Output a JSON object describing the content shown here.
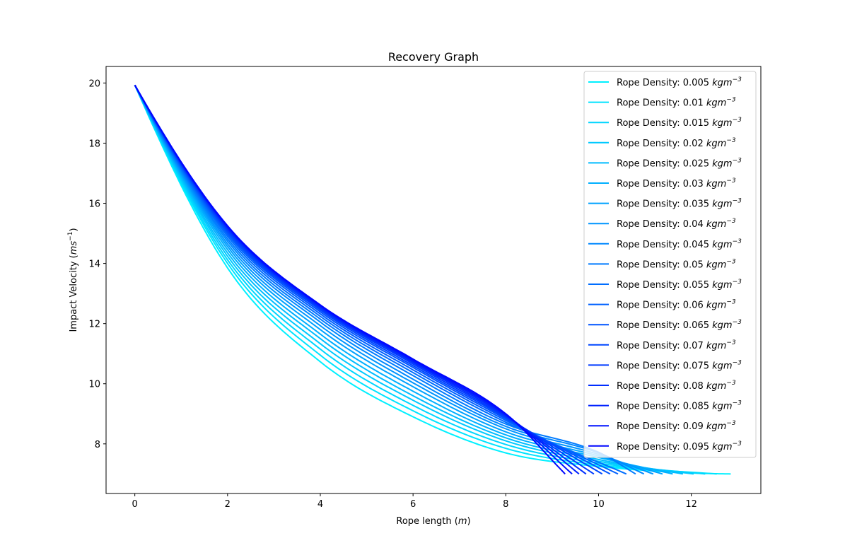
{
  "chart_data": {
    "type": "line",
    "title": "Recovery Graph",
    "xlabel": "Rope length",
    "xlabel_unit": "m",
    "ylabel": "Impact Velocity",
    "ylabel_unit": "ms",
    "ylabel_unit_exp": "−1",
    "xlim": [
      -0.62,
      13.5
    ],
    "ylim": [
      6.35,
      20.55
    ],
    "xticks": [
      0,
      2,
      4,
      6,
      8,
      10,
      12
    ],
    "yticks": [
      8,
      10,
      12,
      14,
      16,
      18,
      20
    ],
    "grid": false,
    "legend_position": "upper right",
    "legend_prefix": "Rope Density: ",
    "legend_unit": "kgm",
    "legend_unit_exp": "−3",
    "start_point": [
      0,
      19.93
    ],
    "end_velocity": 7.0,
    "series": [
      {
        "name": "Rope Density: 0.005 kgm^-3",
        "density": "0.005",
        "color": "#00f0ff",
        "end_x": 12.85,
        "y_at": [
          19.93,
          13.85,
          10.73,
          8.9,
          7.7,
          7.25,
          7.03
        ]
      },
      {
        "name": "Rope Density: 0.01 kgm^-3",
        "density": "0.01",
        "color": "#00e3ff",
        "end_x": 12.55,
        "y_at": [
          19.93,
          14.0,
          10.95,
          9.1,
          7.85,
          7.3,
          7.04
        ]
      },
      {
        "name": "Rope Density: 0.015 kgm^-3",
        "density": "0.015",
        "color": "#00d6ff",
        "end_x": 12.3,
        "y_at": [
          19.93,
          14.12,
          11.15,
          9.28,
          7.98,
          7.36,
          7.05
        ]
      },
      {
        "name": "Rope Density: 0.02 kgm^-3",
        "density": "0.02",
        "color": "#00c9ff",
        "end_x": 12.05,
        "y_at": [
          19.93,
          14.24,
          11.33,
          9.45,
          8.1,
          7.42,
          7.06
        ]
      },
      {
        "name": "Rope Density: 0.025 kgm^-3",
        "density": "0.025",
        "color": "#00bcff",
        "end_x": 11.82,
        "y_at": [
          19.93,
          14.35,
          11.5,
          9.6,
          8.2,
          7.48,
          7.07
        ]
      },
      {
        "name": "Rope Density: 0.03 kgm^-3",
        "density": "0.03",
        "color": "#00afff",
        "end_x": 11.6,
        "y_at": [
          19.93,
          14.46,
          11.65,
          9.75,
          8.3,
          7.55,
          7.08
        ]
      },
      {
        "name": "Rope Density: 0.035 kgm^-3",
        "density": "0.035",
        "color": "#00a2ff",
        "end_x": 11.38,
        "y_at": [
          19.93,
          14.56,
          11.8,
          9.9,
          8.4,
          7.6,
          7.1
        ]
      },
      {
        "name": "Rope Density: 0.04 kgm^-3",
        "density": "0.04",
        "color": "#0095ff",
        "end_x": 11.18,
        "y_at": [
          19.93,
          14.65,
          11.93,
          10.03,
          8.5,
          7.65,
          7.12
        ]
      },
      {
        "name": "Rope Density: 0.045 kgm^-3",
        "density": "0.045",
        "color": "#0088ff",
        "end_x": 10.98,
        "y_at": [
          19.93,
          14.74,
          12.05,
          10.15,
          8.58,
          7.7,
          7.14
        ]
      },
      {
        "name": "Rope Density: 0.05 kgm^-3",
        "density": "0.05",
        "color": "#007bff",
        "end_x": 10.8,
        "y_at": [
          19.93,
          14.82,
          12.15,
          10.27,
          8.66,
          7.72,
          7.16
        ]
      },
      {
        "name": "Rope Density: 0.055 kgm^-3",
        "density": "0.055",
        "color": "#006eff",
        "end_x": 10.6,
        "y_at": [
          19.93,
          14.9,
          12.24,
          10.37,
          8.72,
          7.7,
          7.18
        ]
      },
      {
        "name": "Rope Density: 0.06 kgm^-3",
        "density": "0.06",
        "color": "#0061ff",
        "end_x": 10.42,
        "y_at": [
          19.93,
          14.97,
          12.32,
          10.46,
          8.78,
          7.6,
          7.2
        ]
      },
      {
        "name": "Rope Density: 0.065 kgm^-3",
        "density": "0.065",
        "color": "#0054ff",
        "end_x": 10.25,
        "y_at": [
          19.93,
          15.03,
          12.39,
          10.54,
          8.83,
          7.5,
          7.2
        ]
      },
      {
        "name": "Rope Density: 0.07 kgm^-3",
        "density": "0.07",
        "color": "#0047ff",
        "end_x": 10.08,
        "y_at": [
          19.93,
          15.08,
          12.45,
          10.6,
          8.87,
          7.4,
          7.2
        ]
      },
      {
        "name": "Rope Density: 0.075 kgm^-3",
        "density": "0.075",
        "color": "#003aff",
        "end_x": 9.9,
        "y_at": [
          19.93,
          15.13,
          12.5,
          10.66,
          8.9,
          7.3,
          7.2
        ]
      },
      {
        "name": "Rope Density: 0.08 kgm^-3",
        "density": "0.08",
        "color": "#002dff",
        "end_x": 9.73,
        "y_at": [
          19.93,
          15.17,
          12.54,
          10.71,
          8.93,
          7.2,
          7.2
        ]
      },
      {
        "name": "Rope Density: 0.085 kgm^-3",
        "density": "0.085",
        "color": "#0020ff",
        "end_x": 9.58,
        "y_at": [
          19.93,
          15.2,
          12.57,
          10.75,
          8.96,
          7.1,
          7.1
        ]
      },
      {
        "name": "Rope Density: 0.09 kgm^-3",
        "density": "0.09",
        "color": "#0013ff",
        "end_x": 9.43,
        "y_at": [
          19.93,
          15.23,
          12.6,
          10.79,
          8.98,
          7.0,
          7.0
        ]
      },
      {
        "name": "Rope Density: 0.095 kgm^-3",
        "density": "0.095",
        "color": "#0006ff",
        "end_x": 9.28,
        "y_at": [
          19.93,
          15.25,
          12.62,
          10.82,
          9.0,
          7.0,
          7.0
        ]
      }
    ],
    "y_at_x": [
      0,
      2,
      4,
      6,
      8,
      10,
      12
    ]
  }
}
